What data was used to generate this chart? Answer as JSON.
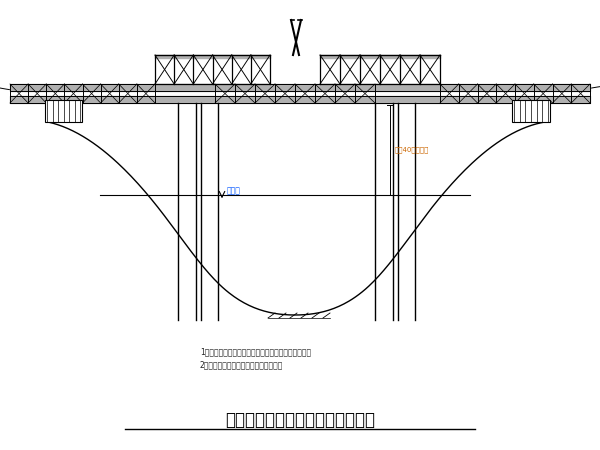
{
  "title": "通启运河特大桥贝雷钢便桥示意图",
  "note1": "1、平面贝雷架与上承贝雷下兼贝雷组合，以利通航。",
  "note2": "2、荷载等能力应工开门以设载量计算。",
  "water_level_label": "常水位",
  "bridge_label": "通航40重大桥距",
  "bg_color": "#ffffff",
  "line_color": "#000000",
  "label_color_blue": "#0055ff",
  "label_color_orange": "#cc6600",
  "gray_fill": "#b0b0b0",
  "dark_gray": "#606060"
}
